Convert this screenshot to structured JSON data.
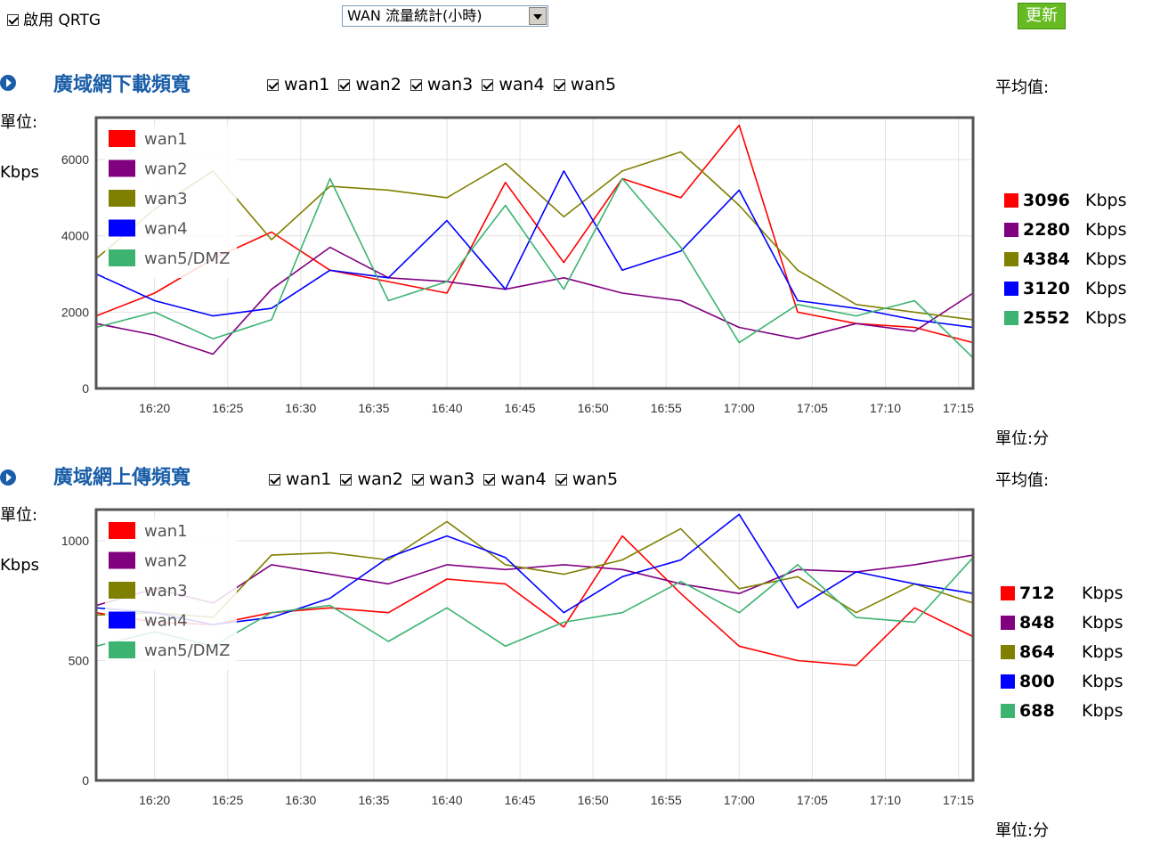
{
  "top": {
    "qrtg_label": "啟用 QRTG",
    "qrtg_checked": true,
    "stat_select": "WAN 流量統計(小時)",
    "refresh_label": "更新"
  },
  "colors": {
    "wan1": "#ff0000",
    "wan2": "#800080",
    "wan3": "#808000",
    "wan4": "#0000ff",
    "wan5": "#3cb371",
    "title": "#1a5ea8",
    "refresh_bg": "#66bb22"
  },
  "wan_checks": [
    "wan1",
    "wan2",
    "wan3",
    "wan4",
    "wan5"
  ],
  "legend_labels": [
    "wan1",
    "wan2",
    "wan3",
    "wan4",
    "wan5/DMZ"
  ],
  "download": {
    "title": "廣域網下載頻寬",
    "avg_label": "平均值:",
    "unit_label": "單位:",
    "unit_value": "Kbps",
    "x_unit": "單位:分",
    "averages": [
      {
        "value": "3096",
        "unit": "Kbps"
      },
      {
        "value": "2280",
        "unit": "Kbps"
      },
      {
        "value": "4384",
        "unit": "Kbps"
      },
      {
        "value": "3120",
        "unit": "Kbps"
      },
      {
        "value": "2552",
        "unit": "Kbps"
      }
    ]
  },
  "upload": {
    "title": "廣域網上傳頻寬",
    "avg_label": "平均值:",
    "unit_label": "單位:",
    "unit_value": "Kbps",
    "x_unit": "單位:分",
    "averages": [
      {
        "value": "712",
        "unit": "Kbps"
      },
      {
        "value": "848",
        "unit": "Kbps"
      },
      {
        "value": "864",
        "unit": "Kbps"
      },
      {
        "value": "800",
        "unit": "Kbps"
      },
      {
        "value": "688",
        "unit": "Kbps"
      }
    ]
  },
  "chart_data": [
    {
      "type": "line",
      "title": "廣域網下載頻寬",
      "ylabel": "Kbps",
      "xlabel": "單位:分",
      "ylim": [
        0,
        7100
      ],
      "yticks": [
        0,
        2000,
        4000,
        6000
      ],
      "xlim": [
        "16:16",
        "17:16"
      ],
      "xticks": [
        "16:20",
        "16:25",
        "16:30",
        "16:35",
        "16:40",
        "16:45",
        "16:50",
        "16:55",
        "17:00",
        "17:05",
        "17:10",
        "17:15"
      ],
      "x_time": [
        "16:16",
        "16:20",
        "16:24",
        "16:28",
        "16:32",
        "16:36",
        "16:40",
        "16:44",
        "16:48",
        "16:52",
        "16:56",
        "17:00",
        "17:04",
        "17:08",
        "17:12",
        "17:16"
      ],
      "grid": true,
      "legend_position": "top-left",
      "series": [
        {
          "name": "wan1",
          "values": [
            1900,
            2500,
            3400,
            4100,
            3100,
            2800,
            2500,
            5400,
            3300,
            5500,
            5000,
            6900,
            2000,
            1700,
            1600,
            1200
          ]
        },
        {
          "name": "wan2",
          "values": [
            1700,
            1400,
            900,
            2600,
            3700,
            2900,
            2800,
            2600,
            2900,
            2500,
            2300,
            1600,
            1300,
            1700,
            1500,
            2500
          ]
        },
        {
          "name": "wan3",
          "values": [
            3400,
            4700,
            5700,
            3900,
            5300,
            5200,
            5000,
            5900,
            4500,
            5700,
            6200,
            4800,
            3100,
            2200,
            2000,
            1800
          ]
        },
        {
          "name": "wan4",
          "values": [
            3000,
            2300,
            1900,
            2100,
            3100,
            2900,
            4400,
            2600,
            5700,
            3100,
            3600,
            5200,
            2300,
            2100,
            1800,
            1600
          ]
        },
        {
          "name": "wan5/DMZ",
          "values": [
            1600,
            2000,
            1300,
            1800,
            5500,
            2300,
            2800,
            4800,
            2600,
            5500,
            3700,
            1200,
            2200,
            1900,
            2300,
            800
          ]
        }
      ]
    },
    {
      "type": "line",
      "title": "廣域網上傳頻寬",
      "ylabel": "Kbps",
      "xlabel": "單位:分",
      "ylim": [
        0,
        1130
      ],
      "yticks": [
        0,
        500,
        1000
      ],
      "xlim": [
        "16:16",
        "17:16"
      ],
      "xticks": [
        "16:20",
        "16:25",
        "16:30",
        "16:35",
        "16:40",
        "16:45",
        "16:50",
        "16:55",
        "17:00",
        "17:05",
        "17:10",
        "17:15"
      ],
      "x_time": [
        "16:16",
        "16:20",
        "16:24",
        "16:28",
        "16:32",
        "16:36",
        "16:40",
        "16:44",
        "16:48",
        "16:52",
        "16:56",
        "17:00",
        "17:04",
        "17:08",
        "17:12",
        "17:16"
      ],
      "grid": true,
      "legend_position": "top-left",
      "series": [
        {
          "name": "wan1",
          "values": [
            700,
            660,
            650,
            700,
            720,
            700,
            840,
            820,
            640,
            1020,
            780,
            560,
            500,
            480,
            720,
            600
          ]
        },
        {
          "name": "wan2",
          "values": [
            730,
            800,
            740,
            900,
            860,
            820,
            900,
            880,
            900,
            880,
            820,
            780,
            880,
            870,
            900,
            940
          ]
        },
        {
          "name": "wan3",
          "values": [
            690,
            700,
            680,
            940,
            950,
            920,
            1080,
            900,
            860,
            920,
            1050,
            800,
            850,
            700,
            820,
            740
          ]
        },
        {
          "name": "wan4",
          "values": [
            720,
            700,
            650,
            680,
            760,
            930,
            1020,
            930,
            700,
            850,
            920,
            1110,
            720,
            870,
            820,
            780
          ]
        },
        {
          "name": "wan5/DMZ",
          "values": [
            560,
            620,
            560,
            700,
            730,
            580,
            720,
            560,
            660,
            700,
            830,
            700,
            900,
            680,
            660,
            930
          ]
        }
      ]
    }
  ]
}
